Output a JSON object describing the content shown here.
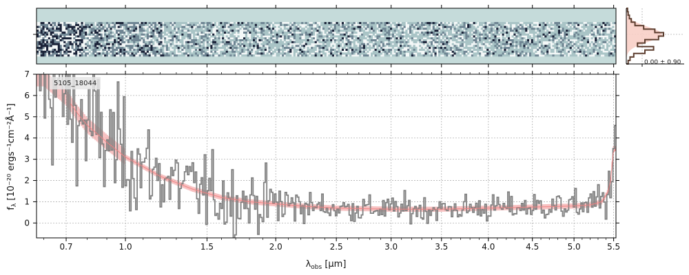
{
  "chart_data": {
    "type": "line",
    "object_label": "5105_18044",
    "xlabel_main": "λ",
    "xlabel_sub": "obs",
    "xlabel_unit": " [μm]",
    "ylabel_main": "f",
    "ylabel_sub": "λ",
    "ylabel_unit": " [10⁻²⁰ ergs⁻¹cm⁻²Å⁻¹]",
    "xlim": [
      0.57,
      5.53
    ],
    "ylim": [
      -0.7,
      7
    ],
    "x_ticks": [
      0.7,
      1.0,
      1.5,
      2.0,
      2.5,
      3.0,
      3.5,
      4.0,
      4.5,
      5.0,
      5.5
    ],
    "x_tick_labels": [
      "0.7",
      "1.0",
      "1.5",
      "2.0",
      "2.5",
      "3.0",
      "3.5",
      "4.0",
      "4.5",
      "5.0",
      "5.5"
    ],
    "y_ticks": [
      0,
      1,
      2,
      3,
      4,
      5,
      6,
      7
    ],
    "y_tick_labels": [
      "0",
      "1",
      "2",
      "3",
      "4",
      "5",
      "6",
      "7"
    ],
    "grid": true,
    "hist_label": "0.00 ± 0.90",
    "colors": {
      "data": "#808080",
      "model": "#f4a6a6",
      "model_dark": "#8b3a3a",
      "spectrum_bg": "#c5dbda",
      "hist_line": "#5c3d2e",
      "hist_fill": "#f8cfc6"
    },
    "series": [
      {
        "name": "",
        "x": [
          0.6,
          0.7,
          0.75,
          0.8,
          0.9,
          1.0,
          1.2,
          1.4,
          1.6,
          1.8,
          2.0,
          2.2,
          2.5,
          3.0,
          3.5,
          4.0,
          4.5,
          5.0,
          5.2,
          5.35,
          5.45,
          5.5
        ],
        "values": [
          6.8,
          5.9,
          5.2,
          4.6,
          3.8,
          3.1,
          2.2,
          1.6,
          1.2,
          1.0,
          0.9,
          0.8,
          0.7,
          0.65,
          0.65,
          0.7,
          0.75,
          0.8,
          0.85,
          1.0,
          1.6,
          3.5
        ]
      }
    ]
  }
}
